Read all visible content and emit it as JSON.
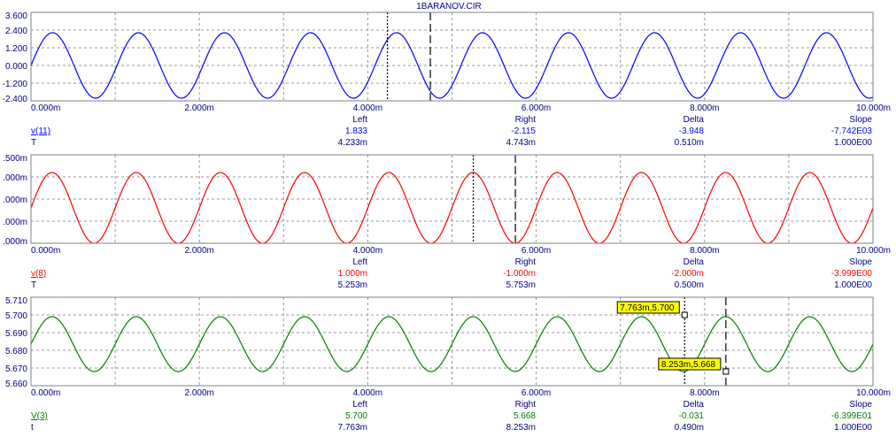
{
  "window_title": "1BARANOV.CIR",
  "colors": {
    "background": "#ffffff",
    "frame": "#808080",
    "grid": "#9a9a9a",
    "axis_text": "#000080",
    "panel_1": "#0000ff",
    "panel_2": "#ff0000",
    "panel_3": "#008000",
    "tag_fill": "#ffff00"
  },
  "chart_data": [
    {
      "type": "line",
      "title": "1BARANOV.CIR",
      "xticks": [
        "0.000m",
        "2.000m",
        "4.000m",
        "6.000m",
        "8.000m",
        "10.000m"
      ],
      "xlim": [
        0,
        10
      ],
      "yticks": [
        "3.600",
        "2.400",
        "1.200",
        "0.000",
        "-1.200",
        "-2.400"
      ],
      "ylim": [
        -2.4,
        3.6
      ],
      "series": [
        {
          "name": "v(11)",
          "color": "#0000ff",
          "waveform": "sine",
          "offset": 0.0,
          "amplitude": 2.22,
          "period_ms": 1.0214,
          "start_ms": 0.0,
          "end_ms": 10.0
        }
      ],
      "cursors": [
        {
          "x_ms": 4.233,
          "style": "dotted"
        },
        {
          "x_ms": 4.743,
          "style": "dashed"
        }
      ],
      "readout": {
        "headers": [
          "Left",
          "Right",
          "Delta",
          "Slope"
        ],
        "rows": [
          {
            "label": "v(11)",
            "values": [
              "1.833",
              "-2.115",
              "-3.948",
              "-7.742E03"
            ]
          },
          {
            "label": "T",
            "values": [
              "4.233m",
              "4.743m",
              "0.510m",
              "1.000E00"
            ]
          }
        ]
      }
    },
    {
      "type": "line",
      "xticks": [
        "0.000m",
        "2.000m",
        "4.000m",
        "6.000m",
        "8.000m",
        "10.000m"
      ],
      "xlim": [
        0,
        10
      ],
      "yticks": [
        ".500m",
        ".000m",
        ".000m",
        ".000m",
        ".000m"
      ],
      "ylim": [
        -1.0,
        1.5
      ],
      "series": [
        {
          "name": "v(8)",
          "color": "#ff0000",
          "waveform": "sine",
          "offset": 0.0,
          "amplitude": 1.0,
          "period_ms": 1.0,
          "start_ms": 0.0,
          "end_ms": 10.0
        }
      ],
      "cursors": [
        {
          "x_ms": 5.253,
          "style": "dotted"
        },
        {
          "x_ms": 5.753,
          "style": "dashed"
        }
      ],
      "readout": {
        "headers": [
          "Left",
          "Right",
          "Delta",
          "Slope"
        ],
        "rows": [
          {
            "label": "v(8)",
            "values": [
              "1.000m",
              "-1.000m",
              "-2.000m",
              "-3.999E00"
            ]
          },
          {
            "label": "T",
            "values": [
              "5.253m",
              "5.753m",
              "0.500m",
              "1.000E00"
            ]
          }
        ]
      }
    },
    {
      "type": "line",
      "xticks": [
        "0.000m",
        "2.000m",
        "4.000m",
        "6.000m",
        "8.000m",
        "10.000m"
      ],
      "xlim": [
        0,
        10
      ],
      "yticks": [
        "5.710",
        "5.700",
        "5.690",
        "5.680",
        "5.670",
        "5.660"
      ],
      "ylim": [
        5.66,
        5.71
      ],
      "series": [
        {
          "name": "V(3)",
          "color": "#008000",
          "waveform": "sine",
          "offset": 5.6835,
          "amplitude": 0.0155,
          "period_ms": 1.0,
          "start_ms": 0.0,
          "end_ms": 10.0
        }
      ],
      "cursors": [
        {
          "x_ms": 7.763,
          "style": "dotted"
        },
        {
          "x_ms": 8.253,
          "style": "dashed"
        }
      ],
      "tags": [
        {
          "text": "7.763m,5.700",
          "x_ms": 7.763,
          "y": 5.7
        },
        {
          "text": "8.253m,5.668",
          "x_ms": 8.253,
          "y": 5.668
        }
      ],
      "readout": {
        "headers": [
          "Left",
          "Right",
          "Delta",
          "Slope"
        ],
        "rows": [
          {
            "label": "V(3)",
            "values": [
              "5.700",
              "5.668",
              "-0.031",
              "-6.399E01"
            ]
          },
          {
            "label": "t",
            "values": [
              "7.763m",
              "8.253m",
              "0.490m",
              "1.000E00"
            ]
          }
        ]
      }
    }
  ]
}
